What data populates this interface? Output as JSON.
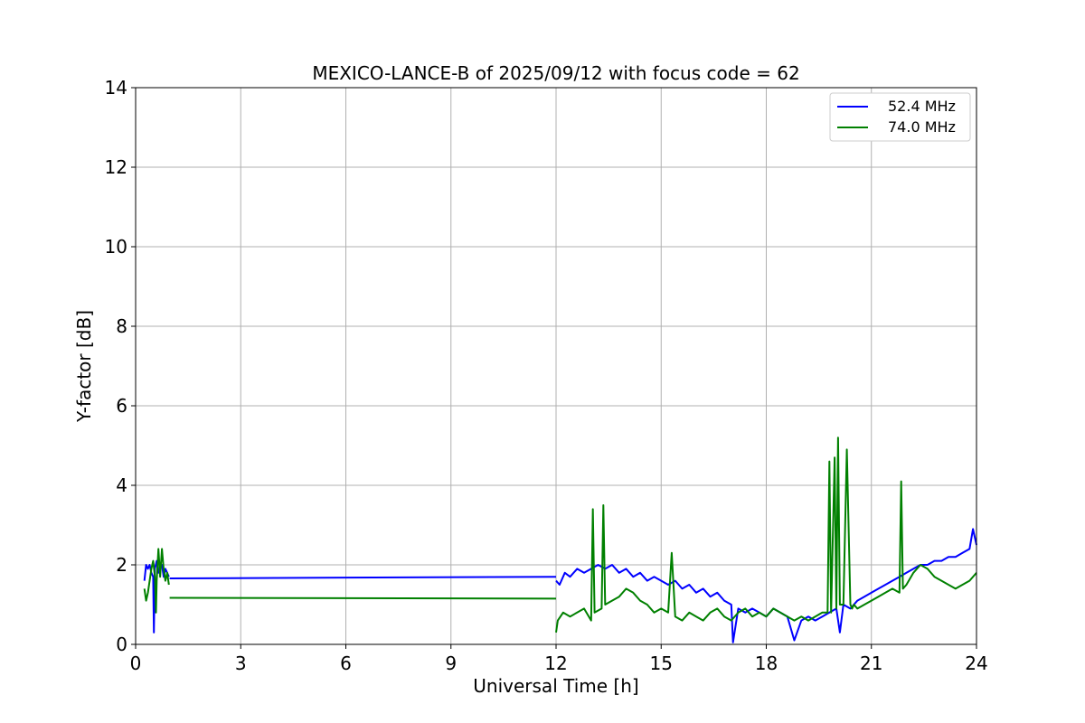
{
  "chart_data": {
    "type": "line",
    "title": "MEXICO-LANCE-B of 2025/09/12 with focus code = 62",
    "xlabel": "Universal Time [h]",
    "ylabel": "Y-factor [dB]",
    "xlim": [
      0,
      24
    ],
    "ylim": [
      0,
      14
    ],
    "xticks": [
      0,
      3,
      6,
      9,
      12,
      15,
      18,
      21,
      24
    ],
    "yticks": [
      0,
      2,
      4,
      6,
      8,
      10,
      12,
      14
    ],
    "grid": true,
    "legend_position": "top-right",
    "series": [
      {
        "name": "52.4 MHz",
        "color": "#0000ff",
        "segments": [
          {
            "x": [
              0.25,
              0.3,
              0.35,
              0.4,
              0.45,
              0.5,
              0.52,
              0.55,
              0.6,
              0.65,
              0.7,
              0.75,
              0.8,
              0.85,
              0.9,
              0.95
            ],
            "y": [
              1.6,
              2.0,
              1.9,
              2.0,
              1.8,
              1.7,
              0.3,
              1.9,
              2.1,
              1.8,
              1.9,
              2.0,
              1.7,
              1.9,
              1.8,
              1.7
            ]
          },
          {
            "x": [
              0.97,
              12.0
            ],
            "y": [
              1.66,
              1.7
            ]
          },
          {
            "x": [
              12.0,
              12.1,
              12.25,
              12.4,
              12.6,
              12.8,
              13.0,
              13.2,
              13.4,
              13.6,
              13.8,
              14.0,
              14.2,
              14.4,
              14.6,
              14.8,
              15.0,
              15.2,
              15.4,
              15.6,
              15.8,
              16.0,
              16.2,
              16.4,
              16.6,
              16.8,
              17.0,
              17.05,
              17.2,
              17.4,
              17.6,
              17.8,
              18.0,
              18.2,
              18.4,
              18.6,
              18.8,
              19.0,
              19.2,
              19.4,
              19.6,
              19.8,
              20.0,
              20.1,
              20.2,
              20.4,
              20.6,
              20.8,
              21.0,
              21.2,
              21.4,
              21.6,
              21.8,
              22.0,
              22.2,
              22.4,
              22.6,
              22.8,
              23.0,
              23.2,
              23.4,
              23.6,
              23.8,
              23.9,
              24.0
            ],
            "y": [
              1.6,
              1.5,
              1.8,
              1.7,
              1.9,
              1.8,
              1.9,
              2.0,
              1.9,
              2.0,
              1.8,
              1.9,
              1.7,
              1.8,
              1.6,
              1.7,
              1.6,
              1.5,
              1.6,
              1.4,
              1.5,
              1.3,
              1.4,
              1.2,
              1.3,
              1.1,
              1.0,
              0.05,
              0.9,
              0.8,
              0.9,
              0.8,
              0.7,
              0.9,
              0.8,
              0.7,
              0.1,
              0.6,
              0.7,
              0.6,
              0.7,
              0.8,
              0.9,
              0.3,
              1.0,
              0.9,
              1.1,
              1.2,
              1.3,
              1.4,
              1.5,
              1.6,
              1.7,
              1.8,
              1.9,
              2.0,
              2.0,
              2.1,
              2.1,
              2.2,
              2.2,
              2.3,
              2.4,
              2.9,
              2.5
            ]
          }
        ]
      },
      {
        "name": "74.0 MHz",
        "color": "#008000",
        "segments": [
          {
            "x": [
              0.25,
              0.3,
              0.35,
              0.4,
              0.45,
              0.5,
              0.55,
              0.58,
              0.6,
              0.65,
              0.7,
              0.75,
              0.8,
              0.85,
              0.9,
              0.95
            ],
            "y": [
              1.4,
              1.1,
              1.3,
              1.6,
              1.9,
              2.1,
              1.7,
              0.8,
              1.6,
              2.4,
              1.7,
              2.4,
              1.9,
              1.6,
              1.8,
              1.5
            ]
          },
          {
            "x": [
              0.97,
              12.0
            ],
            "y": [
              1.17,
              1.15
            ]
          },
          {
            "x": [
              12.0,
              12.05,
              12.2,
              12.4,
              12.6,
              12.8,
              13.0,
              13.05,
              13.1,
              13.3,
              13.35,
              13.4,
              13.6,
              13.8,
              14.0,
              14.2,
              14.4,
              14.6,
              14.8,
              15.0,
              15.2,
              15.3,
              15.4,
              15.6,
              15.8,
              16.0,
              16.2,
              16.4,
              16.6,
              16.8,
              17.0,
              17.2,
              17.4,
              17.6,
              17.8,
              18.0,
              18.2,
              18.4,
              18.6,
              18.8,
              19.0,
              19.2,
              19.4,
              19.6,
              19.75,
              19.8,
              19.85,
              19.95,
              20.0,
              20.05,
              20.1,
              20.2,
              20.3,
              20.4,
              20.45,
              20.5,
              20.6,
              20.8,
              21.0,
              21.2,
              21.4,
              21.6,
              21.8,
              21.85,
              21.9,
              22.0,
              22.2,
              22.4,
              22.6,
              22.8,
              23.0,
              23.2,
              23.4,
              23.6,
              23.8,
              24.0
            ],
            "y": [
              0.3,
              0.6,
              0.8,
              0.7,
              0.8,
              0.9,
              0.6,
              3.4,
              0.8,
              0.9,
              3.5,
              1.0,
              1.1,
              1.2,
              1.4,
              1.3,
              1.1,
              1.0,
              0.8,
              0.9,
              0.8,
              2.3,
              0.7,
              0.6,
              0.8,
              0.7,
              0.6,
              0.8,
              0.9,
              0.7,
              0.6,
              0.8,
              0.9,
              0.7,
              0.8,
              0.7,
              0.9,
              0.8,
              0.7,
              0.6,
              0.7,
              0.6,
              0.7,
              0.8,
              0.8,
              4.6,
              0.8,
              4.7,
              0.9,
              5.2,
              1.0,
              1.0,
              4.9,
              1.0,
              0.9,
              1.0,
              0.9,
              1.0,
              1.1,
              1.2,
              1.3,
              1.4,
              1.3,
              4.1,
              1.4,
              1.5,
              1.8,
              2.0,
              1.9,
              1.7,
              1.6,
              1.5,
              1.4,
              1.5,
              1.6,
              1.8
            ]
          }
        ]
      }
    ]
  }
}
